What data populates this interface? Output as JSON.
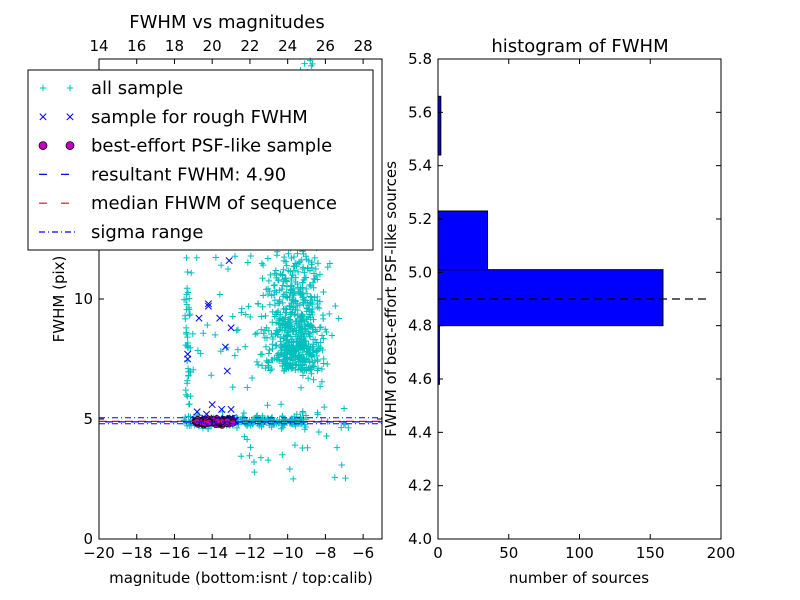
{
  "chart_data": [
    {
      "type": "scatter",
      "title": "FWHM vs magnitudes",
      "xlabel": "magnitude (bottom:isnt / top:calib)",
      "ylabel": "FWHM (pix)",
      "xlim": [
        -20,
        -5
      ],
      "ylim": [
        0,
        20
      ],
      "xticks": [
        "−20",
        "−18",
        "−16",
        "−14",
        "−12",
        "−10",
        "−8",
        "−6"
      ],
      "xtick_values": [
        -20,
        -18,
        -16,
        -14,
        -12,
        -10,
        -8,
        -6
      ],
      "top_ticks": [
        "14",
        "16",
        "18",
        "20",
        "22",
        "24",
        "26",
        "28"
      ],
      "top_tick_values": [
        14,
        16,
        18,
        20,
        22,
        24,
        26,
        28
      ],
      "top_offset": 34,
      "yticks": [
        "0",
        "5",
        "10"
      ],
      "ytick_values": [
        0,
        5,
        10
      ],
      "grid": false,
      "legend_position": "upper-left",
      "legend": [
        {
          "label": "all sample",
          "marker": "plus",
          "color": "#00bfbf"
        },
        {
          "label": "sample for rough FWHM",
          "marker": "x",
          "color": "#0000ff"
        },
        {
          "label": "best-effort PSF-like sample",
          "marker": "circle",
          "color": "#bf00bf"
        },
        {
          "label": "resultant FWHM: 4.90",
          "marker": "dash",
          "color": "#0000ff"
        },
        {
          "label": "median FHWM of sequence",
          "marker": "dash",
          "color": "#ff0000"
        },
        {
          "label": "sigma range",
          "marker": "dashdot",
          "color": "#0000ff"
        }
      ],
      "resultant_fwhm": 4.9,
      "sigma_range": [
        4.8,
        5.05
      ],
      "rough_sample": [
        [
          -15.3,
          7.7
        ],
        [
          -15.3,
          7.5
        ],
        [
          -14.7,
          9.2
        ],
        [
          -14.2,
          9.8
        ],
        [
          -14.2,
          9.7
        ],
        [
          -13.6,
          9.2
        ],
        [
          -13.0,
          8.8
        ],
        [
          -13.3,
          8.0
        ],
        [
          -13.2,
          7.0
        ],
        [
          -13.1,
          11.6
        ],
        [
          -14.0,
          5.6
        ],
        [
          -13.5,
          5.4
        ],
        [
          -13.0,
          5.4
        ],
        [
          -14.8,
          5.3
        ],
        [
          -14.3,
          5.2
        ]
      ],
      "scatter_points_note": "all sample / best-effort sample points are reproduced approximately"
    },
    {
      "type": "bar",
      "orientation": "horizontal",
      "title": "histogram of FWHM",
      "xlabel": "number of sources",
      "ylabel": "FWHM of best-effort PSF-like sources",
      "xlim": [
        0,
        200
      ],
      "ylim": [
        4.0,
        5.8
      ],
      "xticks": [
        "0",
        "50",
        "100",
        "150",
        "200"
      ],
      "xtick_values": [
        0,
        50,
        100,
        150,
        200
      ],
      "yticks": [
        "4.0",
        "4.2",
        "4.4",
        "4.6",
        "4.8",
        "5.0",
        "5.2",
        "5.4",
        "5.6",
        "5.8"
      ],
      "ytick_values": [
        4.0,
        4.2,
        4.4,
        4.6,
        4.8,
        5.0,
        5.2,
        5.4,
        5.6,
        5.8
      ],
      "bins": [
        {
          "from": 4.58,
          "to": 4.8,
          "count": 1
        },
        {
          "from": 4.8,
          "to": 5.01,
          "count": 159
        },
        {
          "from": 5.01,
          "to": 5.23,
          "count": 35
        },
        {
          "from": 5.23,
          "to": 5.44,
          "count": 0
        },
        {
          "from": 5.44,
          "to": 5.66,
          "count": 2
        }
      ],
      "bar_color": "#0000ff",
      "reference_line": 4.9
    }
  ]
}
